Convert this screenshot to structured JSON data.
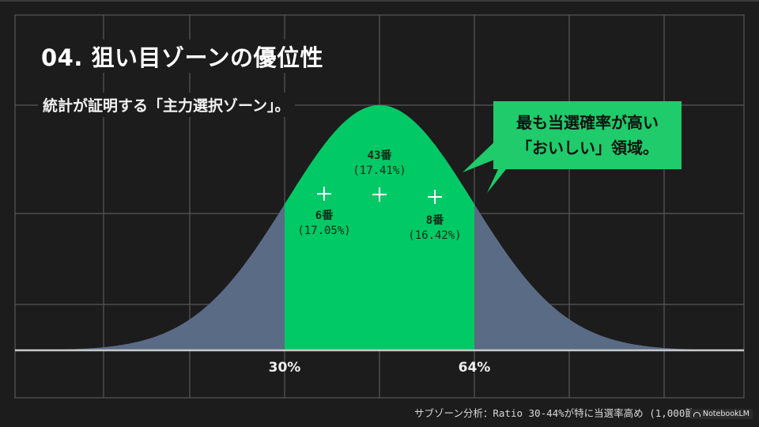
{
  "slide": {
    "title": "04. 狙い目ゾーンの優位性",
    "subtitle": "統計が証明する「主力選択ゾーン」。",
    "callout": {
      "line1": "最も当選確率が高い",
      "line2": "「おいしい」領域。"
    },
    "points": [
      {
        "label": "43番",
        "pct": "(17.41%)"
      },
      {
        "label": "6番",
        "pct": "(17.05%)"
      },
      {
        "label": "8番",
        "pct": "(16.42%)"
      }
    ],
    "x_ticks": [
      "30%",
      "64%"
    ],
    "footnote": "サブゾーン分析：Ratio 30-44%が特に当選率高め (1,000節)",
    "watermark": "NotebookLM",
    "colors": {
      "background": "#1c1c1c",
      "grid": "#5a5a5a",
      "highlight_zone": "#00c965",
      "tail_fill": "#5a6b85",
      "callout": "#1fcb6a"
    }
  },
  "chart_data": {
    "type": "area",
    "title": "04. 狙い目ゾーンの優位性",
    "subtitle": "統計が証明する「主力選択ゾーン」。",
    "description": "Bell-shaped (normal) distribution curve; highlighted zone between 30% and 64% ratio",
    "xlabel": "",
    "ylabel": "",
    "x_ticks": [
      "30%",
      "64%"
    ],
    "highlight_range": [
      "30%",
      "64%"
    ],
    "grid": true,
    "annotations": [
      {
        "text": "43番 (17.41%)",
        "position": "peak center"
      },
      {
        "text": "6番 (17.05%)",
        "position": "left of peak"
      },
      {
        "text": "8番 (16.42%)",
        "position": "right of peak"
      },
      {
        "text": "最も当選確率が高い「おいしい」領域。",
        "type": "callout"
      }
    ],
    "series": [
      {
        "name": "6番",
        "value": 17.05
      },
      {
        "name": "43番",
        "value": 17.41
      },
      {
        "name": "8番",
        "value": 16.42
      }
    ],
    "footnote": "サブゾーン分析：Ratio 30-44%が特に当選率高め (1,000節)"
  }
}
